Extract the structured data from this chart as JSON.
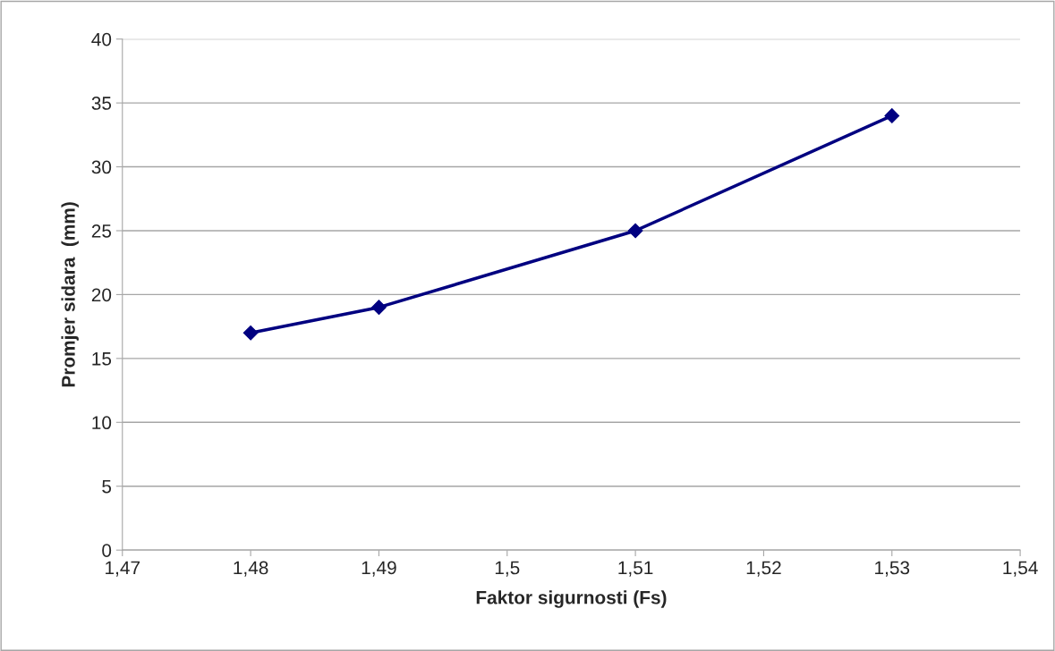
{
  "chart_data": {
    "type": "line",
    "xlabel": "Faktor sigurnosti (Fs)",
    "ylabel": "Promjer sidara  (mm)",
    "x": [
      1.48,
      1.49,
      1.51,
      1.53
    ],
    "series": [
      {
        "color": "#000080",
        "values": [
          17,
          19,
          25,
          34
        ]
      }
    ],
    "xlim": [
      1.47,
      1.54
    ],
    "xticks": [
      {
        "value": 1.47,
        "label": "1,47"
      },
      {
        "value": 1.48,
        "label": "1,48"
      },
      {
        "value": 1.49,
        "label": "1,49"
      },
      {
        "value": 1.5,
        "label": "1,5"
      },
      {
        "value": 1.51,
        "label": "1,51"
      },
      {
        "value": 1.52,
        "label": "1,52"
      },
      {
        "value": 1.53,
        "label": "1,53"
      },
      {
        "value": 1.54,
        "label": "1,54"
      }
    ],
    "ylim": [
      0,
      40
    ],
    "yticks": [
      0,
      5,
      10,
      15,
      20,
      25,
      30,
      35,
      40
    ],
    "grid": "y",
    "legend": false,
    "marker": "diamond",
    "line_style": "solid"
  }
}
